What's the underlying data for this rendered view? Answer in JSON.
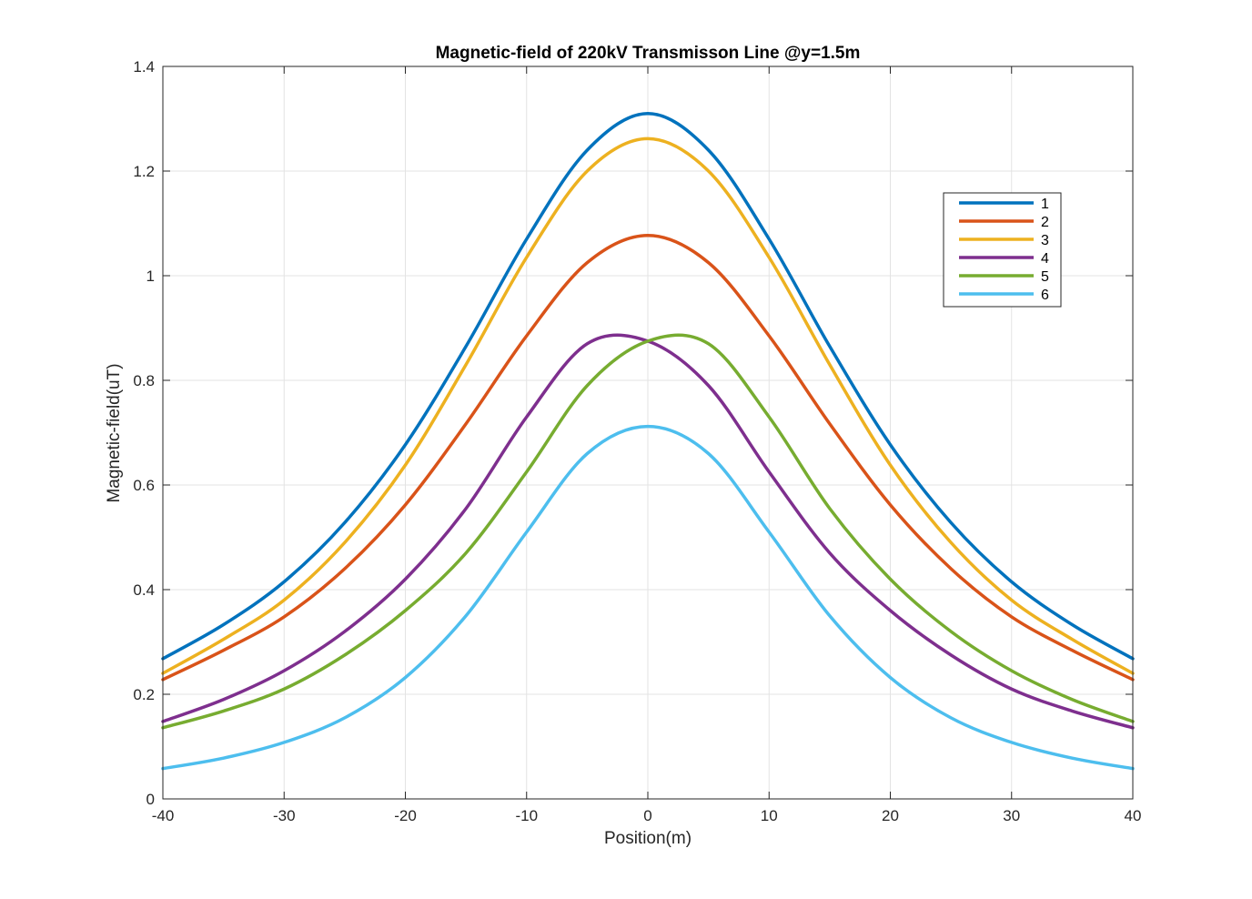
{
  "chart_data": {
    "type": "line",
    "title": "Magnetic-field of 220kV Transmisson Line @y=1.5m",
    "xlabel": "Position(m)",
    "ylabel": "Magnetic-field(uT)",
    "xlim": [
      -40,
      40
    ],
    "ylim": [
      0,
      1.4
    ],
    "xticks": [
      -40,
      -30,
      -20,
      -10,
      0,
      10,
      20,
      30,
      40
    ],
    "xtick_labels": [
      "-40",
      "-30",
      "-20",
      "-10",
      "0",
      "10",
      "20",
      "30",
      "40"
    ],
    "yticks": [
      0,
      0.2,
      0.4,
      0.6,
      0.8,
      1,
      1.2,
      1.4
    ],
    "ytick_labels": [
      "0",
      "0.2",
      "0.4",
      "0.6",
      "0.8",
      "1",
      "1.2",
      "1.4"
    ],
    "grid": true,
    "legend_position": "top-right",
    "x": [
      -40,
      -35,
      -30,
      -25,
      -20,
      -15,
      -10,
      -5,
      0,
      5,
      10,
      15,
      20,
      25,
      30,
      35,
      40
    ],
    "series": [
      {
        "name": "1",
        "color": "#0072BD",
        "values": [
          0.268,
          0.333,
          0.415,
          0.528,
          0.677,
          0.865,
          1.07,
          1.24,
          1.31,
          1.24,
          1.07,
          0.865,
          0.677,
          0.528,
          0.415,
          0.333,
          0.268
        ]
      },
      {
        "name": "2",
        "color": "#D95319",
        "values": [
          0.228,
          0.284,
          0.348,
          0.44,
          0.562,
          0.717,
          0.885,
          1.025,
          1.077,
          1.025,
          0.885,
          0.717,
          0.562,
          0.44,
          0.348,
          0.284,
          0.228
        ]
      },
      {
        "name": "3",
        "color": "#EDB120",
        "values": [
          0.24,
          0.305,
          0.38,
          0.49,
          0.638,
          0.83,
          1.035,
          1.2,
          1.262,
          1.2,
          1.035,
          0.83,
          0.638,
          0.49,
          0.38,
          0.305,
          0.24
        ]
      },
      {
        "name": "4",
        "color": "#7E2F8E",
        "values": [
          0.148,
          0.19,
          0.245,
          0.32,
          0.42,
          0.555,
          0.73,
          0.87,
          0.875,
          0.79,
          0.625,
          0.47,
          0.36,
          0.275,
          0.21,
          0.168,
          0.136
        ]
      },
      {
        "name": "5",
        "color": "#77AC30",
        "values": [
          0.136,
          0.168,
          0.21,
          0.275,
          0.36,
          0.47,
          0.625,
          0.79,
          0.875,
          0.87,
          0.73,
          0.555,
          0.42,
          0.32,
          0.245,
          0.19,
          0.148
        ]
      },
      {
        "name": "6",
        "color": "#4DBEEE",
        "values": [
          0.058,
          0.078,
          0.108,
          0.155,
          0.232,
          0.35,
          0.51,
          0.66,
          0.712,
          0.66,
          0.51,
          0.35,
          0.232,
          0.155,
          0.108,
          0.078,
          0.058
        ]
      }
    ]
  }
}
